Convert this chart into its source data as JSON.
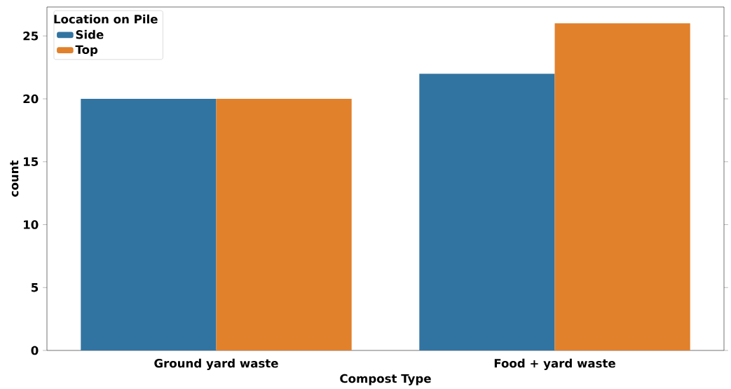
{
  "chart_data": {
    "type": "bar",
    "xlabel": "Compost Type",
    "ylabel": "count",
    "legend_title": "Location on Pile",
    "categories": [
      "Ground yard waste",
      "Food + yard waste"
    ],
    "series": [
      {
        "name": "Side",
        "color": "#3274a1",
        "values": [
          20,
          22
        ]
      },
      {
        "name": "Top",
        "color": "#e1812c",
        "values": [
          20,
          26
        ]
      }
    ],
    "ylim": [
      0,
      27.3
    ],
    "yticks": [
      0,
      5,
      10,
      15,
      20,
      25
    ],
    "legend": "top left",
    "grid": false
  }
}
